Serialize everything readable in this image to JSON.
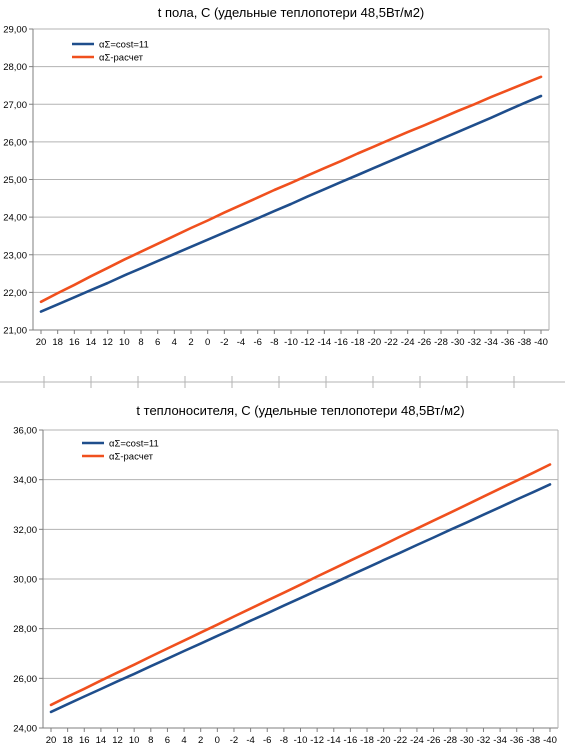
{
  "colors": {
    "series1": "#1f4e8c",
    "series2": "#f0501e",
    "grid": "#b3b3b3",
    "axis": "#7f7f7f",
    "text": "#000000"
  },
  "chart_data": [
    {
      "type": "line",
      "title": "t пола, С  (удельные теплопотери 48,5Вт/м2)",
      "xlabel": "",
      "ylabel": "",
      "x": [
        20,
        18,
        16,
        14,
        12,
        10,
        8,
        6,
        4,
        2,
        0,
        -2,
        -4,
        -6,
        -8,
        -10,
        -12,
        -14,
        -16,
        -18,
        -20,
        -22,
        -24,
        -26,
        -28,
        -30,
        -32,
        -34,
        -36,
        -38,
        -40
      ],
      "x_tick_labels": [
        "20",
        "18",
        "16",
        "14",
        "12",
        "10",
        "8",
        "6",
        "4",
        "2",
        "0",
        "-2",
        "-4",
        "-6",
        "-8",
        "-10",
        "-12",
        "-14",
        "-16",
        "-18",
        "-20",
        "-22",
        "-24",
        "-26",
        "-28",
        "-30",
        "-32",
        "-34",
        "-36",
        "-38",
        "-40"
      ],
      "ylim": [
        21,
        29
      ],
      "y_tick_labels": [
        "21,00",
        "22,00",
        "23,00",
        "24,00",
        "25,00",
        "26,00",
        "27,00",
        "28,00",
        "29,00"
      ],
      "grid": true,
      "legend_position": "top-left",
      "series": [
        {
          "name": "αΣ=cost=11",
          "values": [
            21.49,
            21.68,
            21.87,
            22.06,
            22.25,
            22.45,
            22.64,
            22.83,
            23.02,
            23.21,
            23.4,
            23.59,
            23.78,
            23.97,
            24.16,
            24.35,
            24.55,
            24.74,
            24.93,
            25.12,
            25.31,
            25.5,
            25.69,
            25.88,
            26.07,
            26.26,
            26.45,
            26.64,
            26.84,
            27.03,
            27.22
          ]
        },
        {
          "name": "αΣ-расчет",
          "values": [
            21.75,
            21.98,
            22.2,
            22.43,
            22.65,
            22.87,
            23.08,
            23.29,
            23.5,
            23.71,
            23.91,
            24.12,
            24.32,
            24.52,
            24.72,
            24.91,
            25.11,
            25.3,
            25.49,
            25.69,
            25.88,
            26.07,
            26.26,
            26.44,
            26.63,
            26.82,
            27.0,
            27.19,
            27.37,
            27.55,
            27.73
          ]
        }
      ]
    },
    {
      "type": "line",
      "title": "t теплоносителя, С  (удельные теплопотери 48,5Вт/м2)",
      "xlabel": "",
      "ylabel": "",
      "x": [
        20,
        18,
        16,
        14,
        12,
        10,
        8,
        6,
        4,
        2,
        0,
        -2,
        -4,
        -6,
        -8,
        -10,
        -12,
        -14,
        -16,
        -18,
        -20,
        -22,
        -24,
        -26,
        -28,
        -30,
        -32,
        -34,
        -36,
        -38,
        -40
      ],
      "x_tick_labels": [
        "20",
        "18",
        "16",
        "14",
        "12",
        "10",
        "8",
        "6",
        "4",
        "2",
        "0",
        "-2",
        "-4",
        "-6",
        "-8",
        "-10",
        "-12",
        "-14",
        "-16",
        "-18",
        "-20",
        "-22",
        "-24",
        "-26",
        "-28",
        "-30",
        "-32",
        "-34",
        "-36",
        "-38",
        "-40"
      ],
      "ylim": [
        24,
        36
      ],
      "y_tick_labels": [
        "24,00",
        "26,00",
        "28,00",
        "30,00",
        "32,00",
        "34,00",
        "36,00"
      ],
      "grid": true,
      "legend_position": "top-left",
      "series": [
        {
          "name": "αΣ=cost=11",
          "values": [
            24.65,
            24.96,
            25.27,
            25.57,
            25.88,
            26.18,
            26.49,
            26.79,
            27.1,
            27.4,
            27.71,
            28.01,
            28.32,
            28.62,
            28.93,
            29.23,
            29.54,
            29.84,
            30.15,
            30.45,
            30.76,
            31.06,
            31.37,
            31.67,
            31.98,
            32.28,
            32.59,
            32.89,
            33.2,
            33.5,
            33.81
          ]
        },
        {
          "name": "αΣ-расчет",
          "values": [
            24.93,
            25.26,
            25.58,
            25.91,
            26.23,
            26.55,
            26.88,
            27.2,
            27.52,
            27.84,
            28.16,
            28.49,
            28.81,
            29.13,
            29.45,
            29.77,
            30.1,
            30.42,
            30.74,
            31.06,
            31.38,
            31.71,
            32.03,
            32.35,
            32.67,
            32.99,
            33.32,
            33.64,
            33.96,
            34.28,
            34.61
          ]
        }
      ]
    }
  ]
}
